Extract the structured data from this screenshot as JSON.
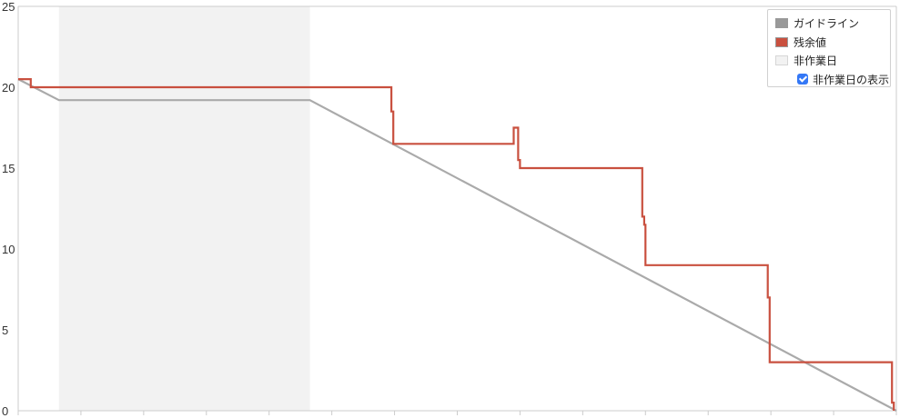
{
  "chart_data": {
    "type": "line",
    "title": "",
    "xlabel": "",
    "ylabel": "",
    "ylim": [
      0,
      25
    ],
    "yticks": [
      "0",
      "5",
      "10",
      "15",
      "20",
      "25"
    ],
    "x_tick_count": 14,
    "x_range": [
      0,
      14
    ],
    "non_working_period": [
      0.65,
      4.65
    ],
    "series": [
      {
        "name": "ガイドライン",
        "color": "#aaaaaa",
        "points": [
          [
            0,
            20.5
          ],
          [
            0.65,
            19.2
          ],
          [
            4.65,
            19.2
          ],
          [
            14,
            0
          ]
        ]
      },
      {
        "name": "残余値",
        "color": "#c9503f",
        "points": [
          [
            0,
            20.5
          ],
          [
            0.2,
            20.5
          ],
          [
            0.2,
            20.0
          ],
          [
            5.95,
            20.0
          ],
          [
            5.95,
            18.5
          ],
          [
            5.98,
            18.5
          ],
          [
            5.98,
            16.5
          ],
          [
            7.9,
            16.5
          ],
          [
            7.9,
            17.5
          ],
          [
            7.97,
            17.5
          ],
          [
            7.97,
            15.5
          ],
          [
            8.0,
            15.5
          ],
          [
            8.0,
            15.0
          ],
          [
            9.95,
            15.0
          ],
          [
            9.95,
            12.0
          ],
          [
            9.98,
            12.0
          ],
          [
            9.98,
            11.5
          ],
          [
            10.0,
            11.5
          ],
          [
            10.0,
            9.0
          ],
          [
            11.95,
            9.0
          ],
          [
            11.95,
            7.0
          ],
          [
            11.98,
            7.0
          ],
          [
            11.98,
            3.0
          ],
          [
            13.93,
            3.0
          ],
          [
            13.93,
            0.5
          ],
          [
            13.96,
            0.5
          ],
          [
            13.96,
            0
          ]
        ]
      }
    ],
    "legend": {
      "position": "top-right",
      "items": [
        {
          "label": "ガイドライン",
          "color": "#999999"
        },
        {
          "label": "残余値",
          "color": "#c9503f"
        },
        {
          "label": "非作業日",
          "color": "#f2f2f2"
        }
      ],
      "checkbox_label": "非作業日の表示",
      "checkbox_checked": true,
      "checkbox_color": "#3478f6"
    },
    "colors": {
      "non_working_fill": "#f2f2f2",
      "axis": "#cccccc"
    }
  }
}
